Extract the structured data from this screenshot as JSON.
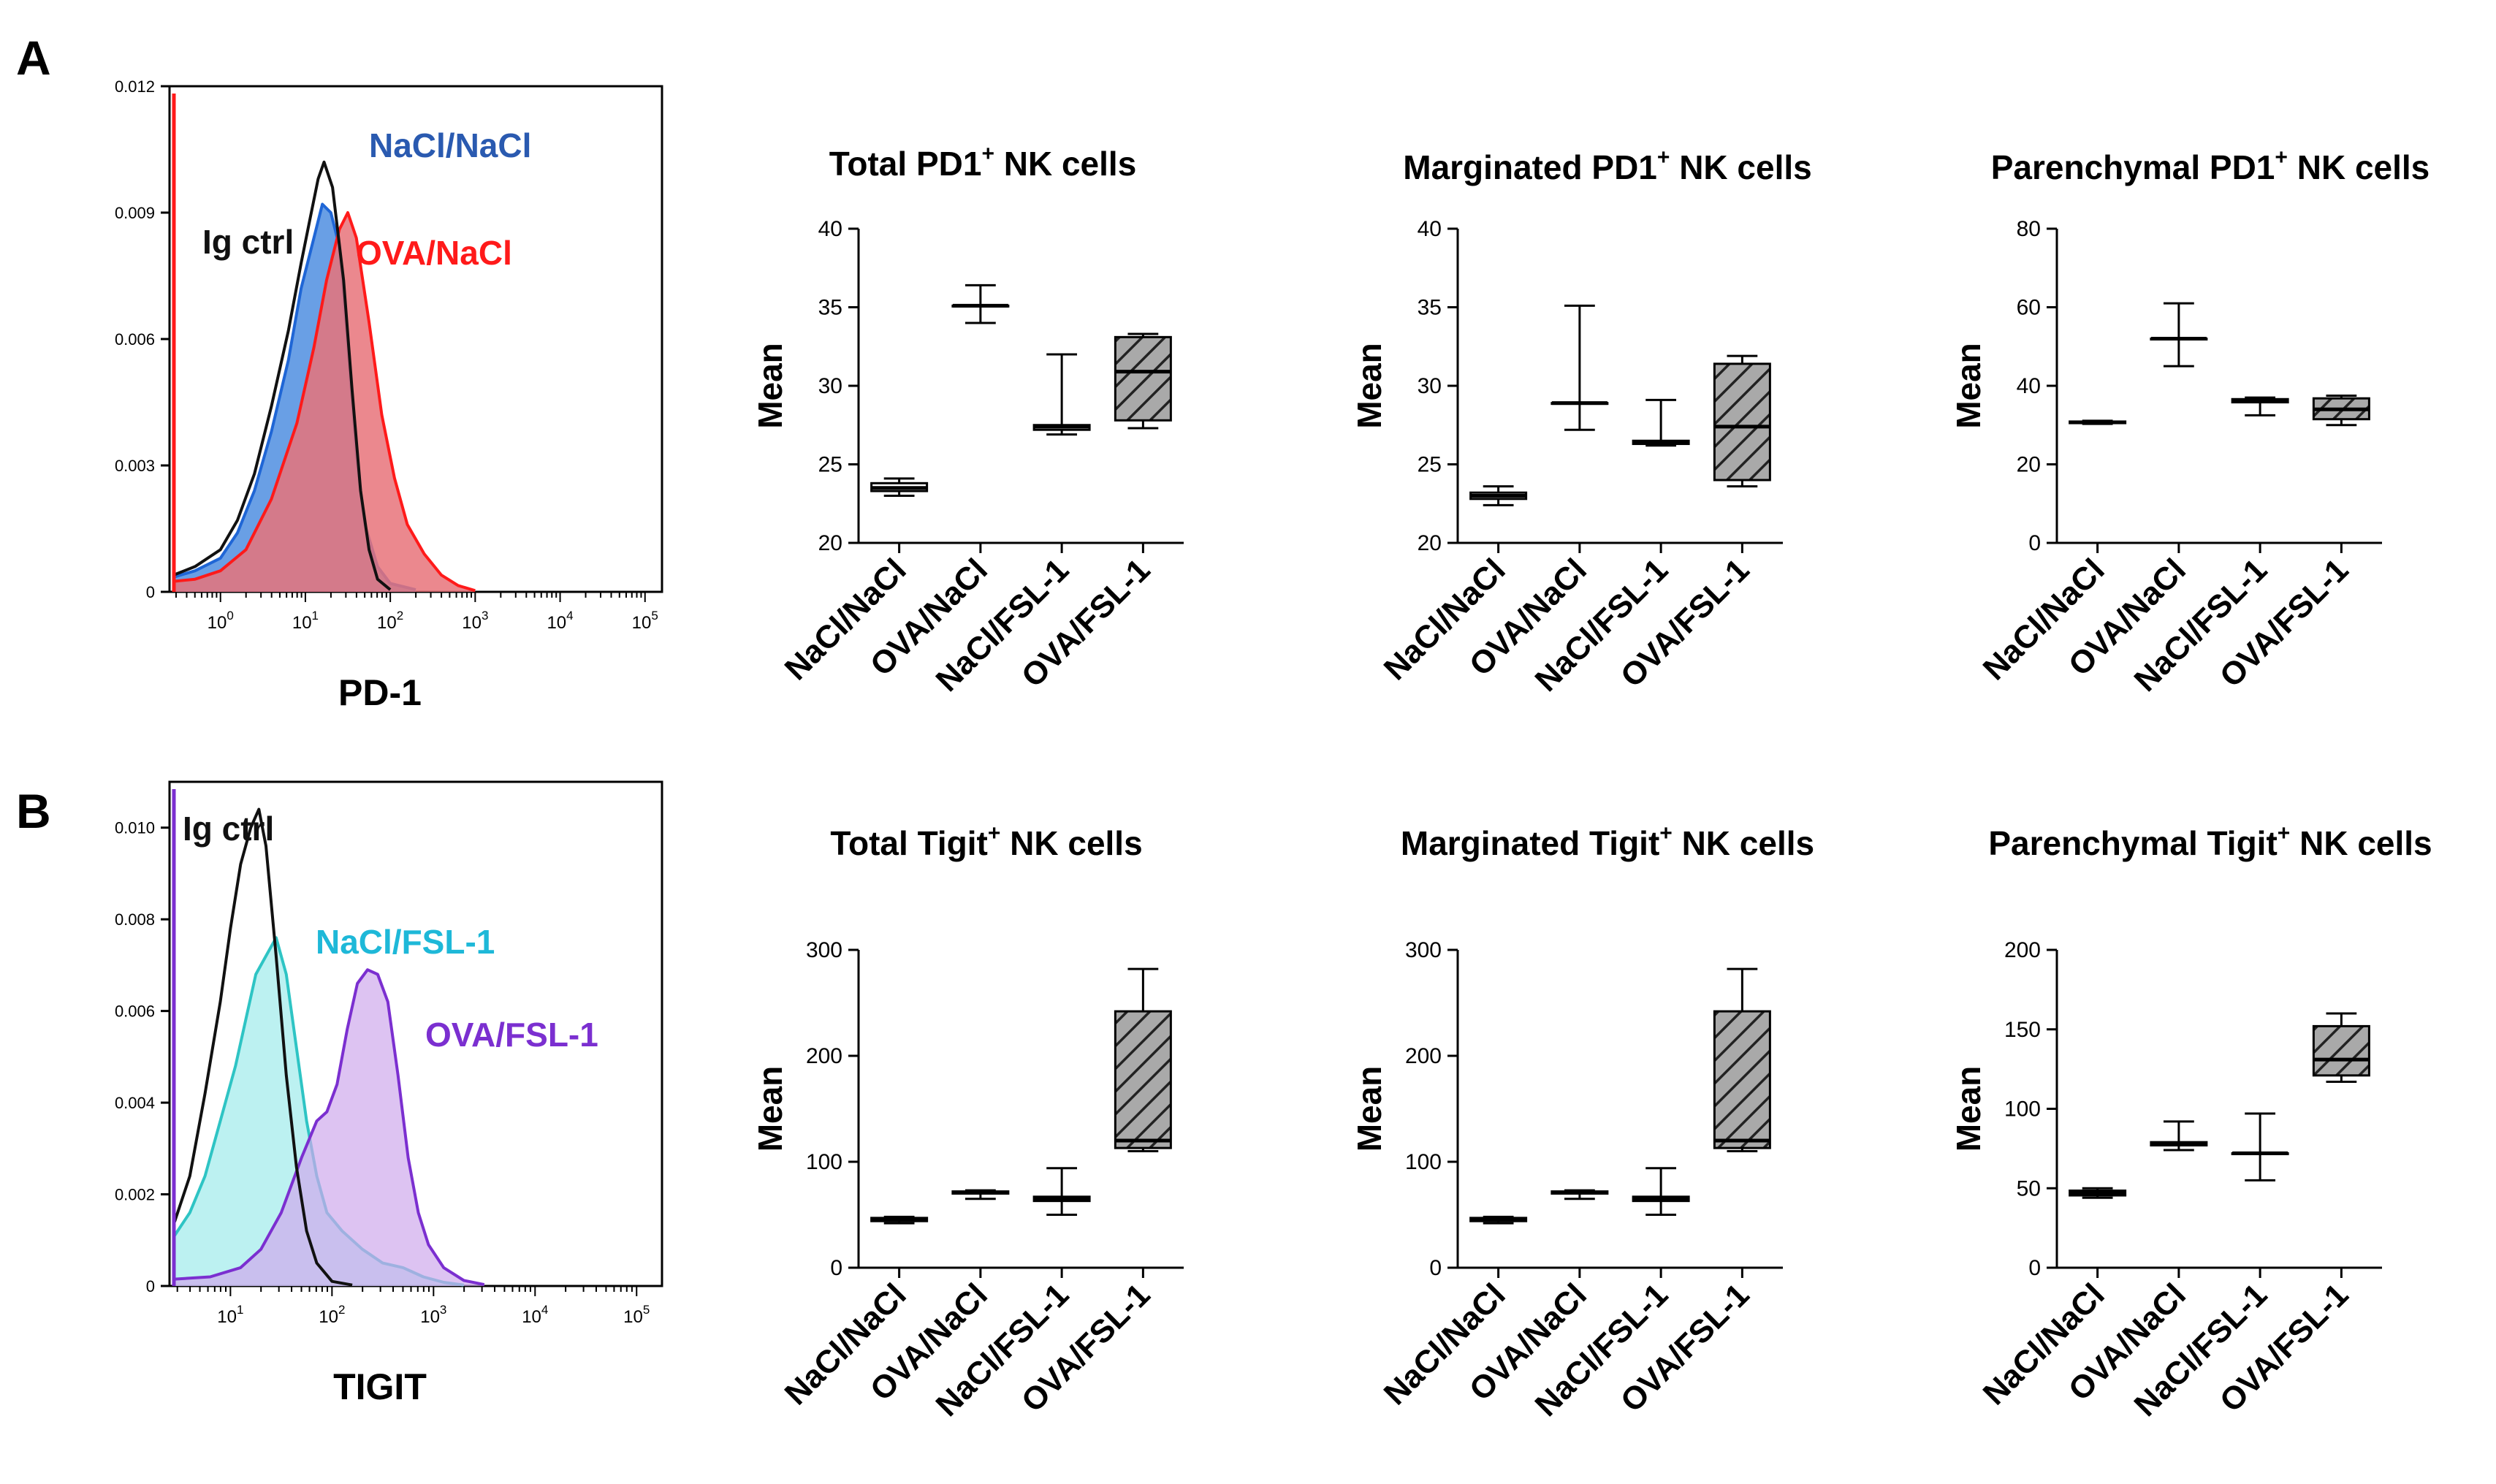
{
  "panels": [
    {
      "label": "A"
    },
    {
      "label": "B"
    }
  ],
  "chart_data": [
    {
      "id": "hist-a",
      "type": "area",
      "panel": "A",
      "title": "",
      "xlabel": "PD-1",
      "ylabel": "",
      "ylim": [
        0,
        0.012
      ],
      "yticks": [
        "0",
        "0.003",
        "0.006",
        "0.009",
        "0.012"
      ],
      "yticks_values": [
        0,
        0.003,
        0.006,
        0.009,
        0.012
      ],
      "xticks": [
        {
          "base": "10",
          "exp": "0",
          "pos": 0
        },
        {
          "base": "10",
          "exp": "1",
          "pos": 1
        },
        {
          "base": "10",
          "exp": "2",
          "pos": 2
        },
        {
          "base": "10",
          "exp": "3",
          "pos": 3
        },
        {
          "base": "10",
          "exp": "4",
          "pos": 4
        },
        {
          "base": "10",
          "exp": "5",
          "pos": 5
        }
      ],
      "xlim_log": [
        -0.6,
        5.2
      ],
      "series": [
        {
          "name": "NaCl/NaCl",
          "color": "#1f66d6",
          "fill": "#4f8ee0",
          "fill_opacity": 0.85,
          "points": [
            [
              -0.55,
              0.00035
            ],
            [
              -0.3,
              0.0005
            ],
            [
              0,
              0.0008
            ],
            [
              0.2,
              0.0014
            ],
            [
              0.4,
              0.0024
            ],
            [
              0.6,
              0.0038
            ],
            [
              0.8,
              0.0055
            ],
            [
              0.95,
              0.0072
            ],
            [
              1.1,
              0.0084
            ],
            [
              1.2,
              0.0092
            ],
            [
              1.3,
              0.009
            ],
            [
              1.4,
              0.0082
            ],
            [
              1.5,
              0.0058
            ],
            [
              1.6,
              0.0032
            ],
            [
              1.7,
              0.0016
            ],
            [
              1.85,
              0.0006
            ],
            [
              2.0,
              0.0002
            ],
            [
              2.3,
              5e-05
            ]
          ]
        },
        {
          "name": "OVA/NaCl",
          "color": "#ff1a1a",
          "fill": "#e8737a",
          "fill_opacity": 0.85,
          "points": [
            [
              -0.55,
              0.00025
            ],
            [
              -0.3,
              0.0003
            ],
            [
              0,
              0.0005
            ],
            [
              0.3,
              0.001
            ],
            [
              0.6,
              0.0022
            ],
            [
              0.9,
              0.004
            ],
            [
              1.1,
              0.0058
            ],
            [
              1.25,
              0.0074
            ],
            [
              1.4,
              0.0086
            ],
            [
              1.5,
              0.009
            ],
            [
              1.6,
              0.0084
            ],
            [
              1.75,
              0.0064
            ],
            [
              1.9,
              0.0042
            ],
            [
              2.05,
              0.0027
            ],
            [
              2.2,
              0.0016
            ],
            [
              2.4,
              0.0009
            ],
            [
              2.6,
              0.0004
            ],
            [
              2.8,
              0.00015
            ],
            [
              3.0,
              3e-05
            ]
          ]
        },
        {
          "name": "Ig ctrl",
          "color": "#111111",
          "fill": "none",
          "fill_opacity": 0,
          "points": [
            [
              -0.55,
              0.0004
            ],
            [
              -0.3,
              0.0006
            ],
            [
              0,
              0.001
            ],
            [
              0.2,
              0.0017
            ],
            [
              0.4,
              0.0028
            ],
            [
              0.6,
              0.0044
            ],
            [
              0.8,
              0.0062
            ],
            [
              0.95,
              0.0078
            ],
            [
              1.05,
              0.0088
            ],
            [
              1.15,
              0.0098
            ],
            [
              1.22,
              0.0102
            ],
            [
              1.32,
              0.0096
            ],
            [
              1.45,
              0.0074
            ],
            [
              1.55,
              0.0048
            ],
            [
              1.65,
              0.0024
            ],
            [
              1.75,
              0.001
            ],
            [
              1.85,
              0.0003
            ],
            [
              2.0,
              5e-05
            ]
          ]
        }
      ],
      "legend": [
        {
          "text": "NaCl/NaCl",
          "color": "#2a5ab0"
        },
        {
          "text": "Ig ctrl",
          "color": "#111111"
        },
        {
          "text": "OVA/NaCl",
          "color": "#ff1a1a"
        }
      ]
    },
    {
      "id": "box-a1",
      "type": "box",
      "panel": "A",
      "title": "Total PD1",
      "title_sup": "+",
      "title_suffix": " NK cells",
      "ylabel": "Mean",
      "ylim": [
        20,
        40
      ],
      "yticks": [
        "20",
        "25",
        "30",
        "35",
        "40"
      ],
      "yticks_values": [
        20,
        25,
        30,
        35,
        40
      ],
      "categories": [
        "NaCl/NaCl",
        "OVA/NaCl",
        "NaCl/FSL-1",
        "OVA/FSL-1"
      ],
      "boxes": [
        {
          "min": 23.0,
          "q1": 23.3,
          "median": 23.5,
          "q3": 23.8,
          "max": 24.1,
          "hatched": false
        },
        {
          "min": 34.0,
          "q1": 35.1,
          "median": 35.1,
          "q3": 35.1,
          "max": 36.4,
          "hatched": false
        },
        {
          "min": 26.9,
          "q1": 27.2,
          "median": 27.4,
          "q3": 27.5,
          "max": 32.0,
          "hatched": false
        },
        {
          "min": 27.3,
          "q1": 27.8,
          "median": 30.9,
          "q3": 33.1,
          "max": 33.3,
          "hatched": true
        }
      ]
    },
    {
      "id": "box-a2",
      "type": "box",
      "panel": "A",
      "title": "Marginated PD1",
      "title_sup": "+",
      "title_suffix": " NK cells",
      "ylabel": "Mean",
      "ylim": [
        20,
        40
      ],
      "yticks": [
        "20",
        "25",
        "30",
        "35",
        "40"
      ],
      "yticks_values": [
        20,
        25,
        30,
        35,
        40
      ],
      "categories": [
        "NaCl/NaCl",
        "OVA/NaCl",
        "NaCl/FSL-1",
        "OVA/FSL-1"
      ],
      "boxes": [
        {
          "min": 22.4,
          "q1": 22.8,
          "median": 23.0,
          "q3": 23.2,
          "max": 23.6,
          "hatched": false
        },
        {
          "min": 27.2,
          "q1": 28.9,
          "median": 28.9,
          "q3": 28.9,
          "max": 35.1,
          "hatched": false
        },
        {
          "min": 26.2,
          "q1": 26.3,
          "median": 26.4,
          "q3": 26.5,
          "max": 29.1,
          "hatched": false
        },
        {
          "min": 23.6,
          "q1": 24.0,
          "median": 27.4,
          "q3": 31.4,
          "max": 31.9,
          "hatched": true
        }
      ]
    },
    {
      "id": "box-a3",
      "type": "box",
      "panel": "A",
      "title": "Parenchymal PD1",
      "title_sup": "+",
      "title_suffix": " NK cells",
      "ylabel": "Mean",
      "ylim": [
        0,
        80
      ],
      "yticks": [
        "0",
        "20",
        "40",
        "60",
        "80"
      ],
      "yticks_values": [
        0,
        20,
        40,
        60,
        80
      ],
      "categories": [
        "NaCl/NaCl",
        "OVA/NaCl",
        "NaCl/FSL-1",
        "OVA/FSL-1"
      ],
      "boxes": [
        {
          "min": 30.3,
          "q1": 30.5,
          "median": 30.7,
          "q3": 30.9,
          "max": 31.1,
          "hatched": false
        },
        {
          "min": 45.0,
          "q1": 52.0,
          "median": 52.0,
          "q3": 52.0,
          "max": 61.0,
          "hatched": false
        },
        {
          "min": 32.5,
          "q1": 35.8,
          "median": 36.2,
          "q3": 36.6,
          "max": 37.0,
          "hatched": false
        },
        {
          "min": 30.0,
          "q1": 31.5,
          "median": 34.0,
          "q3": 36.8,
          "max": 37.5,
          "hatched": true
        }
      ]
    },
    {
      "id": "hist-b",
      "type": "area",
      "panel": "B",
      "title": "",
      "xlabel": "TIGIT",
      "ylabel": "",
      "ylim": [
        0,
        0.011
      ],
      "yticks": [
        "0",
        "0.002",
        "0.004",
        "0.006",
        "0.008",
        "0.010"
      ],
      "yticks_values": [
        0,
        0.002,
        0.004,
        0.006,
        0.008,
        0.01
      ],
      "xticks": [
        {
          "base": "10",
          "exp": "1",
          "pos": 1
        },
        {
          "base": "10",
          "exp": "2",
          "pos": 2
        },
        {
          "base": "10",
          "exp": "3",
          "pos": 3
        },
        {
          "base": "10",
          "exp": "4",
          "pos": 4
        },
        {
          "base": "10",
          "exp": "5",
          "pos": 5
        }
      ],
      "xlim_log": [
        0.4,
        5.25
      ],
      "series": [
        {
          "name": "NaCl/FSL-1",
          "color": "#2ec4c4",
          "fill": "#a6ecec",
          "fill_opacity": 0.75,
          "points": [
            [
              0.45,
              0.0011
            ],
            [
              0.6,
              0.0016
            ],
            [
              0.75,
              0.0024
            ],
            [
              0.9,
              0.0036
            ],
            [
              1.05,
              0.0048
            ],
            [
              1.15,
              0.0058
            ],
            [
              1.25,
              0.0068
            ],
            [
              1.35,
              0.0072
            ],
            [
              1.45,
              0.0076
            ],
            [
              1.55,
              0.0068
            ],
            [
              1.65,
              0.0052
            ],
            [
              1.75,
              0.0036
            ],
            [
              1.85,
              0.0024
            ],
            [
              1.95,
              0.0016
            ],
            [
              2.1,
              0.0012
            ],
            [
              2.3,
              0.0008
            ],
            [
              2.5,
              0.0005
            ],
            [
              2.7,
              0.0004
            ],
            [
              2.9,
              0.0002
            ],
            [
              3.1,
              8e-05
            ],
            [
              3.3,
              2e-05
            ]
          ]
        },
        {
          "name": "OVA/FSL-1",
          "color": "#7b2fd0",
          "fill": "#cfa9ec",
          "fill_opacity": 0.7,
          "points": [
            [
              0.45,
              0.00015
            ],
            [
              0.8,
              0.0002
            ],
            [
              1.1,
              0.0004
            ],
            [
              1.3,
              0.0008
            ],
            [
              1.5,
              0.0016
            ],
            [
              1.7,
              0.0028
            ],
            [
              1.85,
              0.0036
            ],
            [
              1.95,
              0.0038
            ],
            [
              2.05,
              0.0044
            ],
            [
              2.15,
              0.0056
            ],
            [
              2.25,
              0.0066
            ],
            [
              2.35,
              0.0069
            ],
            [
              2.45,
              0.0068
            ],
            [
              2.55,
              0.0062
            ],
            [
              2.65,
              0.0046
            ],
            [
              2.75,
              0.0028
            ],
            [
              2.85,
              0.0016
            ],
            [
              2.95,
              0.0009
            ],
            [
              3.1,
              0.0004
            ],
            [
              3.3,
              0.00012
            ],
            [
              3.5,
              3e-05
            ]
          ]
        },
        {
          "name": "Ig ctrl",
          "color": "#111111",
          "fill": "none",
          "fill_opacity": 0,
          "points": [
            [
              0.45,
              0.0014
            ],
            [
              0.6,
              0.0024
            ],
            [
              0.75,
              0.0042
            ],
            [
              0.9,
              0.0062
            ],
            [
              1.0,
              0.0078
            ],
            [
              1.1,
              0.0092
            ],
            [
              1.2,
              0.01
            ],
            [
              1.28,
              0.0104
            ],
            [
              1.35,
              0.0096
            ],
            [
              1.45,
              0.0072
            ],
            [
              1.55,
              0.0046
            ],
            [
              1.65,
              0.0026
            ],
            [
              1.75,
              0.0012
            ],
            [
              1.85,
              0.0005
            ],
            [
              2.0,
              0.0001
            ],
            [
              2.2,
              2e-05
            ]
          ]
        }
      ],
      "legend": [
        {
          "text": "Ig ctrl",
          "color": "#111111"
        },
        {
          "text": "NaCl/FSL-1",
          "color": "#1eb8d8"
        },
        {
          "text": "OVA/FSL-1",
          "color": "#7b2fd0"
        }
      ]
    },
    {
      "id": "box-b1",
      "type": "box",
      "panel": "B",
      "title": "Total Tigit",
      "title_sup": "+",
      "title_suffix": " NK cells",
      "ylabel": "Mean",
      "ylim": [
        0,
        300
      ],
      "yticks": [
        "0",
        "100",
        "200",
        "300"
      ],
      "yticks_values": [
        0,
        100,
        200,
        300
      ],
      "categories": [
        "NaCl/NaCl",
        "OVA/NaCl",
        "NaCl/FSL-1",
        "OVA/FSL-1"
      ],
      "boxes": [
        {
          "min": 42,
          "q1": 44,
          "median": 45,
          "q3": 47,
          "max": 48,
          "hatched": false
        },
        {
          "min": 65,
          "q1": 70,
          "median": 71,
          "q3": 72,
          "max": 73,
          "hatched": false
        },
        {
          "min": 50,
          "q1": 63,
          "median": 65,
          "q3": 67,
          "max": 94,
          "hatched": false
        },
        {
          "min": 110,
          "q1": 113,
          "median": 120,
          "q3": 242,
          "max": 282,
          "hatched": true
        }
      ]
    },
    {
      "id": "box-b2",
      "type": "box",
      "panel": "B",
      "title": "Marginated Tigit",
      "title_sup": "+",
      "title_suffix": " NK cells",
      "ylabel": "Mean",
      "ylim": [
        0,
        300
      ],
      "yticks": [
        "0",
        "100",
        "200",
        "300"
      ],
      "yticks_values": [
        0,
        100,
        200,
        300
      ],
      "categories": [
        "NaCl/NaCl",
        "OVA/NaCl",
        "NaCl/FSL-1",
        "OVA/FSL-1"
      ],
      "boxes": [
        {
          "min": 42,
          "q1": 44,
          "median": 45,
          "q3": 47,
          "max": 48,
          "hatched": false
        },
        {
          "min": 65,
          "q1": 70,
          "median": 71,
          "q3": 72,
          "max": 73,
          "hatched": false
        },
        {
          "min": 50,
          "q1": 63,
          "median": 65,
          "q3": 67,
          "max": 94,
          "hatched": false
        },
        {
          "min": 110,
          "q1": 113,
          "median": 120,
          "q3": 242,
          "max": 282,
          "hatched": true
        }
      ]
    },
    {
      "id": "box-b3",
      "type": "box",
      "panel": "B",
      "title": "Parenchymal Tigit",
      "title_sup": "+",
      "title_suffix": " NK cells",
      "ylabel": "Mean",
      "ylim": [
        0,
        200
      ],
      "yticks": [
        "0",
        "50",
        "100",
        "150",
        "200"
      ],
      "yticks_values": [
        0,
        50,
        100,
        150,
        200
      ],
      "categories": [
        "NaCl/NaCl",
        "OVA/NaCl",
        "NaCl/FSL-1",
        "OVA/FSL-1"
      ],
      "boxes": [
        {
          "min": 44,
          "q1": 45.5,
          "median": 47,
          "q3": 48.5,
          "max": 50,
          "hatched": false
        },
        {
          "min": 74,
          "q1": 77,
          "median": 78,
          "q3": 79,
          "max": 92,
          "hatched": false
        },
        {
          "min": 55,
          "q1": 72,
          "median": 72,
          "q3": 72,
          "max": 97,
          "hatched": false
        },
        {
          "min": 117,
          "q1": 121,
          "median": 131,
          "q3": 152,
          "max": 160,
          "hatched": true
        }
      ]
    }
  ]
}
